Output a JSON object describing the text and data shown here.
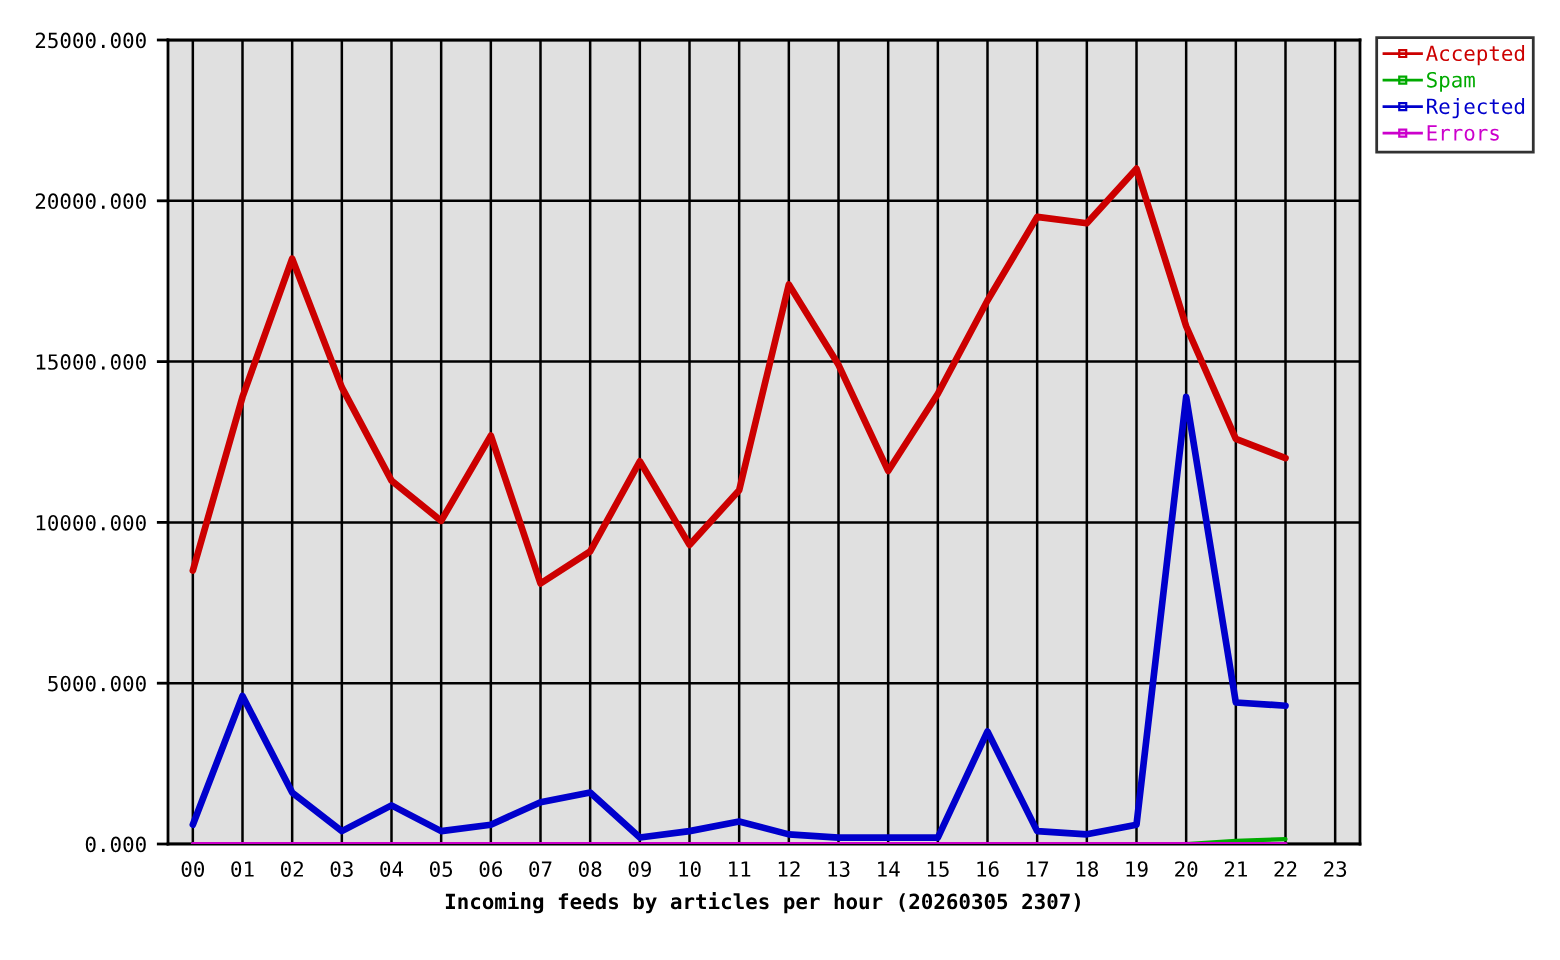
{
  "chart_data": {
    "type": "line",
    "xlabel": "Incoming feeds by articles per hour (20260305 2307)",
    "categories": [
      "00",
      "01",
      "02",
      "03",
      "04",
      "05",
      "06",
      "07",
      "08",
      "09",
      "10",
      "11",
      "12",
      "13",
      "14",
      "15",
      "16",
      "17",
      "18",
      "19",
      "20",
      "21",
      "22",
      "23"
    ],
    "ylim": [
      0,
      25000
    ],
    "yticks": [
      {
        "value": 0,
        "label": "0.000"
      },
      {
        "value": 5000,
        "label": "5000.000"
      },
      {
        "value": 10000,
        "label": "10000.000"
      },
      {
        "value": 15000,
        "label": "15000.000"
      },
      {
        "value": 20000,
        "label": "20000.000"
      },
      {
        "value": 25000,
        "label": "25000.000"
      }
    ],
    "grid": true,
    "legend": "top right",
    "line_style": "solid",
    "series": [
      {
        "name": "Accepted",
        "color": "#cc0000",
        "values": [
          8500,
          13900,
          18200,
          14200,
          11300,
          10050,
          12700,
          8100,
          9100,
          11900,
          9300,
          11000,
          17400,
          14900,
          11600,
          14000,
          16900,
          19500,
          19300,
          21000,
          16100,
          12600,
          12000,
          null
        ]
      },
      {
        "name": "Spam",
        "color": "#00aa00",
        "values": [
          null,
          null,
          null,
          null,
          null,
          null,
          null,
          null,
          null,
          null,
          null,
          null,
          null,
          null,
          null,
          null,
          null,
          null,
          null,
          null,
          0,
          100,
          150,
          null
        ]
      },
      {
        "name": "Rejected",
        "color": "#0000cc",
        "values": [
          600,
          4600,
          1600,
          400,
          1200,
          400,
          600,
          1300,
          1600,
          200,
          400,
          700,
          300,
          200,
          200,
          200,
          3500,
          400,
          300,
          600,
          13900,
          4400,
          4300,
          null
        ]
      },
      {
        "name": "Errors",
        "color": "#cc00cc",
        "values": [
          0,
          0,
          0,
          0,
          0,
          0,
          0,
          0,
          0,
          0,
          0,
          0,
          0,
          0,
          0,
          0,
          0,
          0,
          0,
          0,
          0,
          0,
          0,
          null
        ]
      }
    ]
  }
}
